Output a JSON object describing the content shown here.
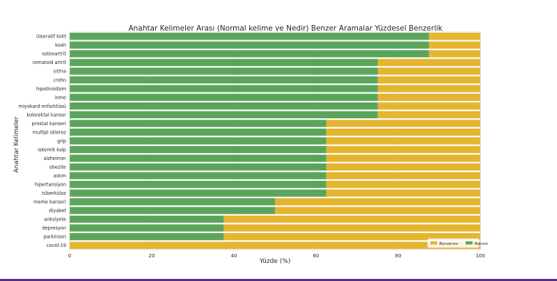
{
  "chart_data": {
    "type": "bar",
    "orientation": "horizontal",
    "stacked": true,
    "title": "Anahtar Kelimeler Arası (Normal kelime ve Nedir) Benzer Aramalar Yüzdesel Benzerlik",
    "xlabel": "Yüzde (%)",
    "ylabel": "Anahtar Kelimeler",
    "xlim": [
      0,
      100
    ],
    "xticks": [
      "0",
      "20",
      "40",
      "60",
      "80",
      "100"
    ],
    "grid": true,
    "legend_position": "bottom-right",
    "categories": [
      "ülseratif kolit",
      "koah",
      "osteoartrit",
      "romatoid artrit",
      "sıtma",
      "crohn",
      "hipotiroidizm",
      "inme",
      "miyokard enfarktüsü",
      "kolorektal kanser",
      "prostat kanseri",
      "multipl skleroz",
      "grip",
      "iskemik kalp",
      "alzheimer",
      "obezite",
      "astım",
      "hipertansiyon",
      "tüberküloz",
      "meme kanseri",
      "diyabet",
      "anksiyete",
      "depresyon",
      "parkinson",
      "covid-19"
    ],
    "series": [
      {
        "name": "Benzer",
        "color": "#5ba55b",
        "values": [
          87.5,
          87.5,
          87.5,
          75,
          75,
          75,
          75,
          75,
          75,
          75,
          62.5,
          62.5,
          62.5,
          62.5,
          62.5,
          62.5,
          62.5,
          62.5,
          62.5,
          50,
          50,
          37.5,
          37.5,
          37.5,
          0
        ]
      },
      {
        "name": "Benzersiz",
        "color": "#e6b52f",
        "values": [
          12.5,
          12.5,
          12.5,
          25,
          25,
          25,
          25,
          25,
          25,
          25,
          37.5,
          37.5,
          37.5,
          37.5,
          37.5,
          37.5,
          37.5,
          37.5,
          37.5,
          50,
          50,
          62.5,
          62.5,
          62.5,
          100
        ]
      }
    ],
    "legend": [
      {
        "label": "Benzersiz",
        "color": "#e6b52f"
      },
      {
        "label": "Benzer",
        "color": "#5ba55b"
      }
    ]
  }
}
